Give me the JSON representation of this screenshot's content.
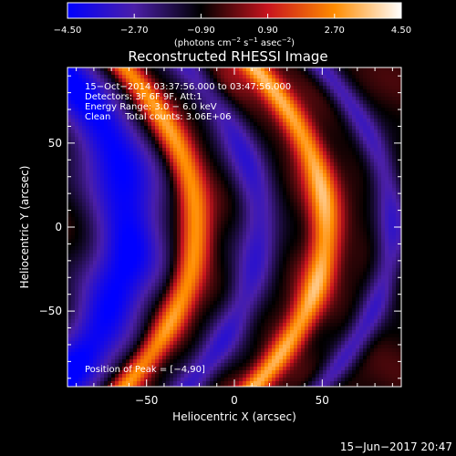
{
  "chart_data": {
    "type": "heatmap",
    "title": "Reconstructed RHESSI Image",
    "xlabel": "Heliocentric X (arcsec)",
    "ylabel": "Heliocentric Y (arcsec)",
    "xlim": [
      -95,
      95
    ],
    "ylim": [
      -95,
      95
    ],
    "x_ticks": [
      -50,
      0,
      50
    ],
    "y_ticks": [
      -50,
      0,
      50
    ],
    "x_tick_labels": [
      "−50",
      "0",
      "50"
    ],
    "y_tick_labels": [
      "−50",
      "0",
      "50"
    ],
    "colorbar": {
      "range": [
        -4.5,
        4.5
      ],
      "ticks": [
        -4.5,
        -2.7,
        -0.9,
        0.9,
        2.7,
        4.5
      ],
      "tick_labels": [
        "−4.50",
        "−2.70",
        "−0.90",
        "0.90",
        "2.70",
        "4.50"
      ],
      "unit_prefix": "(photons cm",
      "unit_exp1": "−2",
      "unit_mid": " s",
      "unit_exp2": "−1",
      "unit_mid2": " asec",
      "unit_exp3": "−2",
      "unit_suffix": ")",
      "colormap": [
        "#0000ff",
        "#4b1fa8",
        "#000000",
        "#c8141e",
        "#ff8c00",
        "#ffffff"
      ]
    },
    "annotations": {
      "line1": "15−Oct−2014 03:37:56.000 to 03:47:56.000",
      "line2": "Detectors: 3F 6F 9F, Att:1",
      "line3": "Energy Range: 3.0 − 6.0 keV",
      "line4": "Clean     Total counts: 3.06E+06",
      "peak": "Position of Peak = [−4,90]"
    },
    "bands": [
      {
        "center_x": -60,
        "center_y": 0,
        "curvature": 0.0045,
        "width": 22,
        "value": -3.9
      },
      {
        "center_x": -22,
        "center_y": 0,
        "curvature": 0.0045,
        "width": 9,
        "value": 3.6
      },
      {
        "center_x": 14,
        "center_y": 0,
        "curvature": 0.0045,
        "width": 12,
        "value": -2.6
      },
      {
        "center_x": 52,
        "center_y": 0,
        "curvature": 0.0045,
        "width": 9,
        "value": 3.9
      },
      {
        "center_x": 90,
        "center_y": 0,
        "curvature": 0.0045,
        "width": 9,
        "value": -2.4
      }
    ],
    "peak": [
      -4,
      90
    ]
  },
  "footer": {
    "timestamp": "15−Jun−2017 20:47"
  }
}
